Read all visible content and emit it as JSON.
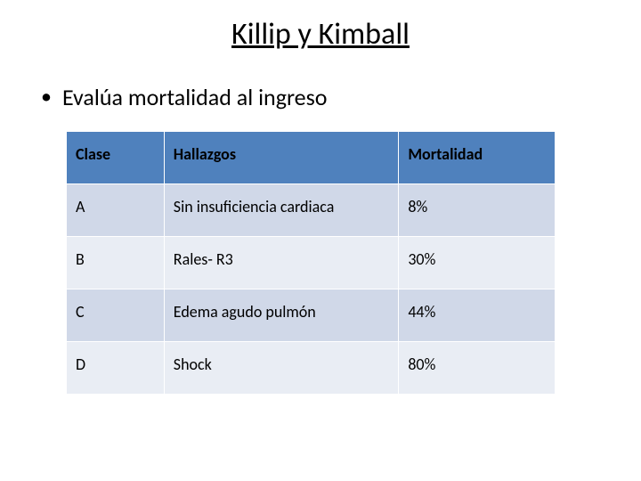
{
  "title": "Killip y Kimball",
  "bullet": "Evalúa mortalidad al ingreso",
  "table": {
    "type": "table",
    "header_bg": "#4f81bd",
    "row_bg_a": "#d0d8e8",
    "row_bg_b": "#e9edf4",
    "border_color": "#ffffff",
    "text_color": "#000000",
    "header_fontsize": 18,
    "cell_fontsize": 18,
    "columns": [
      "Clase",
      "Hallazgos",
      "Mortalidad"
    ],
    "col_widths": [
      "20%",
      "48%",
      "32%"
    ],
    "rows": [
      [
        "A",
        "Sin insuficiencia cardiaca",
        "8%"
      ],
      [
        "B",
        "Rales- R3",
        "30%"
      ],
      [
        "C",
        "Edema agudo pulmón",
        "44%"
      ],
      [
        "D",
        "Shock",
        "80%"
      ]
    ]
  }
}
